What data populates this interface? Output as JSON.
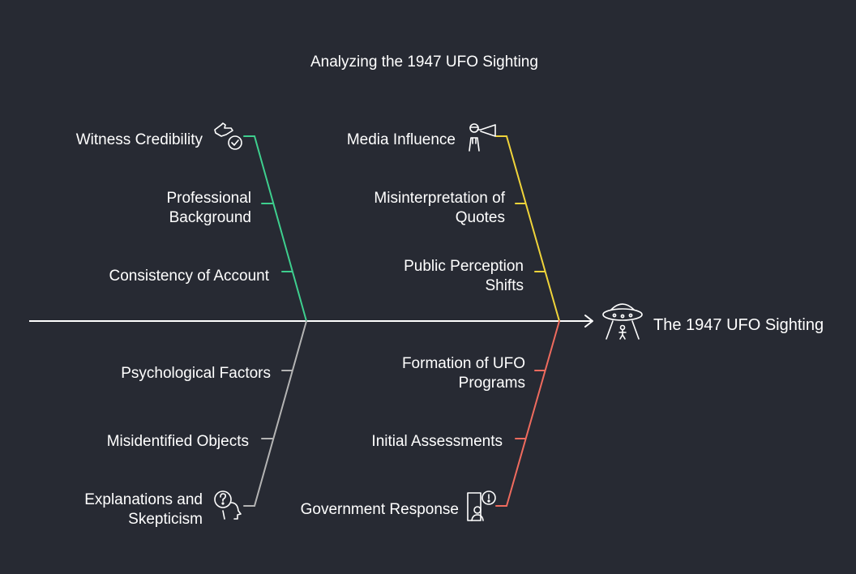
{
  "title": "Analyzing the 1947 UFO Sighting",
  "effect": "The 1947 UFO Sighting",
  "categories": {
    "witness": {
      "label": "Witness Credibility",
      "color": "#3ecf8e",
      "icon": "thumbs-up-check-icon",
      "causes": [
        {
          "lines": [
            "Professional",
            "Background"
          ]
        },
        {
          "lines": [
            "Consistency of Account"
          ]
        }
      ]
    },
    "media": {
      "label": "Media Influence",
      "color": "#f0d43a",
      "icon": "person-megaphone-icon",
      "causes": [
        {
          "lines": [
            "Misinterpretation of",
            "Quotes"
          ]
        },
        {
          "lines": [
            "Public Perception",
            "Shifts"
          ]
        }
      ]
    },
    "explanations": {
      "label_lines": [
        "Explanations and",
        "Skepticism"
      ],
      "color": "#b4b4b4",
      "icon": "head-question-icon",
      "causes": [
        {
          "lines": [
            "Psychological Factors"
          ]
        },
        {
          "lines": [
            "Misidentified Objects"
          ]
        }
      ]
    },
    "government": {
      "label": "Government Response",
      "color": "#ef6b5e",
      "icon": "document-alert-icon",
      "causes": [
        {
          "lines": [
            "Formation of UFO",
            "Programs"
          ]
        },
        {
          "lines": [
            "Initial Assessments"
          ]
        }
      ]
    }
  },
  "effect_icon": "ufo-icon",
  "spine_color": "#ffffff"
}
